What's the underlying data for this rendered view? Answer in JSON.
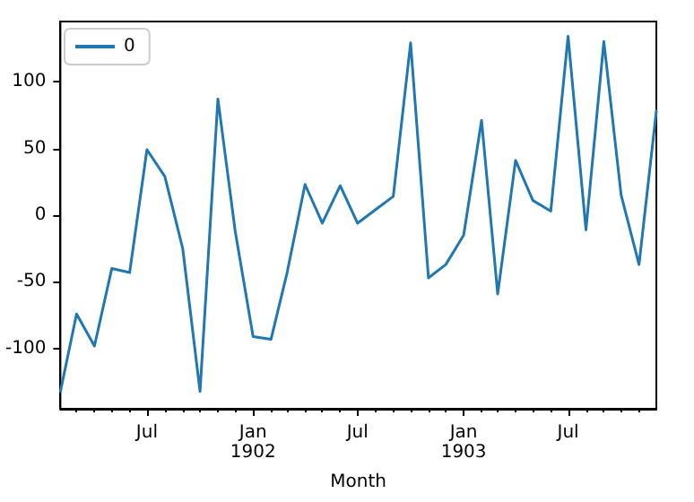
{
  "chart_data": {
    "type": "line",
    "xlabel": "Month",
    "legend": "top left",
    "grid": false,
    "marker": "none",
    "line_style": "solid",
    "x": [
      "1901-02",
      "1901-03",
      "1901-04",
      "1901-05",
      "1901-06",
      "1901-07",
      "1901-08",
      "1901-09",
      "1901-10",
      "1901-11",
      "1901-12",
      "1902-01",
      "1902-02",
      "1902-03",
      "1902-04",
      "1902-05",
      "1902-06",
      "1902-07",
      "1902-08",
      "1902-09",
      "1902-10",
      "1902-11",
      "1902-12",
      "1903-01",
      "1903-02",
      "1903-03",
      "1903-04",
      "1903-05",
      "1903-06",
      "1903-07",
      "1903-08",
      "1903-09",
      "1903-10",
      "1903-11",
      "1903-12"
    ],
    "series": [
      {
        "name": "0",
        "color": "#1f77b4",
        "values": [
          -132,
          -74,
          -98,
          -40,
          -43,
          49,
          29,
          -25,
          -132,
          87,
          -12,
          -91,
          -93,
          -43,
          23,
          -6,
          22,
          -6,
          4,
          14,
          129,
          -47,
          -37,
          -15,
          71,
          -59,
          41,
          11,
          3,
          134,
          -11,
          130,
          15,
          -37,
          78
        ]
      }
    ],
    "xlim": [
      "1901-02",
      "1903-12"
    ],
    "xticks": [
      {
        "value": "1901-03",
        "label": null
      },
      {
        "value": "1901-04",
        "label": null
      },
      {
        "value": "1901-05",
        "label": null
      },
      {
        "value": "1901-06",
        "label": null
      },
      {
        "value": "1901-07",
        "label": "Jul"
      },
      {
        "value": "1901-08",
        "label": null
      },
      {
        "value": "1901-09",
        "label": null
      },
      {
        "value": "1901-10",
        "label": null
      },
      {
        "value": "1901-11",
        "label": null
      },
      {
        "value": "1901-12",
        "label": null
      },
      {
        "value": "1902-01",
        "label": "Jan\n1902"
      },
      {
        "value": "1902-02",
        "label": null
      },
      {
        "value": "1902-03",
        "label": null
      },
      {
        "value": "1902-04",
        "label": null
      },
      {
        "value": "1902-05",
        "label": null
      },
      {
        "value": "1902-06",
        "label": null
      },
      {
        "value": "1902-07",
        "label": "Jul"
      },
      {
        "value": "1902-08",
        "label": null
      },
      {
        "value": "1902-09",
        "label": null
      },
      {
        "value": "1902-10",
        "label": null
      },
      {
        "value": "1902-11",
        "label": null
      },
      {
        "value": "1902-12",
        "label": null
      },
      {
        "value": "1903-01",
        "label": "Jan\n1903"
      },
      {
        "value": "1903-02",
        "label": null
      },
      {
        "value": "1903-03",
        "label": null
      },
      {
        "value": "1903-04",
        "label": null
      },
      {
        "value": "1903-05",
        "label": null
      },
      {
        "value": "1903-06",
        "label": null
      },
      {
        "value": "1903-07",
        "label": "Jul"
      },
      {
        "value": "1903-08",
        "label": null
      },
      {
        "value": "1903-09",
        "label": null
      },
      {
        "value": "1903-10",
        "label": null
      },
      {
        "value": "1903-11",
        "label": null
      }
    ],
    "ylim": [
      -145,
      145
    ],
    "yticks": [
      -100,
      -50,
      0,
      50,
      100
    ]
  }
}
